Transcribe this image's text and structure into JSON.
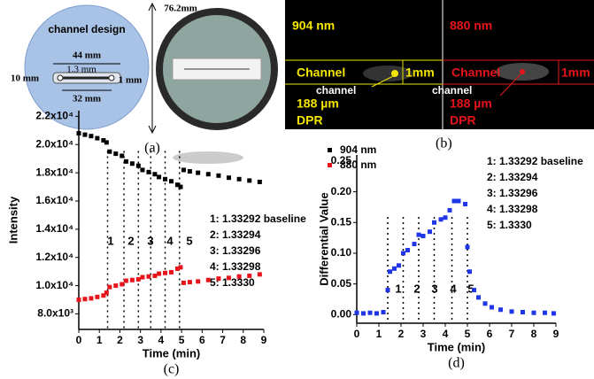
{
  "panel_a": {
    "label": "(a)",
    "dimension": "76.2mm",
    "design_title": "channel design",
    "length_outer": "44 mm",
    "gap": "1.3 mm",
    "height": "10 mm",
    "width": "1 mm",
    "length_inner": "32 mm"
  },
  "panel_b": {
    "label": "(b)",
    "left": {
      "wavelength": "904 nm",
      "channel": "Channel",
      "scale": "1mm",
      "pointer": "channel",
      "size": "188 µm",
      "method": "DPR"
    },
    "right": {
      "wavelength": "880 nm",
      "channel": "Channel",
      "scale": "1mm",
      "pointer": "channel",
      "size": "188 µm",
      "method": "DPR"
    }
  },
  "chart_data": [
    {
      "type": "scatter",
      "panel_label": "(c)",
      "xlabel": "Time (min)",
      "ylabel": "Intensity",
      "xlim": [
        0,
        9
      ],
      "xticks": [
        0,
        1,
        2,
        3,
        4,
        5,
        6,
        7,
        8,
        9
      ],
      "ylim": [
        6900,
        22400
      ],
      "yticks": [
        {
          "value": 8000,
          "label": "8.0x10³"
        },
        {
          "value": 10000,
          "label": "1.0x10⁴"
        },
        {
          "value": 12000,
          "label": "1.2x10⁴"
        },
        {
          "value": 14000,
          "label": "1.4x10⁴"
        },
        {
          "value": 16000,
          "label": "1.6x10⁴"
        },
        {
          "value": 18000,
          "label": "1.8x10⁴"
        },
        {
          "value": 20000,
          "label": "2.0x10⁴"
        },
        {
          "value": 22000,
          "label": "2.2x10⁴"
        }
      ],
      "x": [
        0,
        0.3,
        0.6,
        0.9,
        1.2,
        1.35,
        1.5,
        1.8,
        2.1,
        2.3,
        2.6,
        2.9,
        3.1,
        3.4,
        3.7,
        3.9,
        4.2,
        4.5,
        4.8,
        4.95,
        5.1,
        5.4,
        5.8,
        6.3,
        6.8,
        7.3,
        7.8,
        8.3,
        8.8
      ],
      "series": [
        {
          "name": "904 nm",
          "color": "#000000",
          "values": [
            20800,
            20700,
            20600,
            20450,
            20300,
            20150,
            19500,
            19350,
            19200,
            18800,
            18650,
            18500,
            18200,
            18050,
            17900,
            17700,
            17550,
            17400,
            17150,
            17000,
            18200,
            18100,
            18000,
            17900,
            17800,
            17650,
            17550,
            17450,
            17350
          ]
        },
        {
          "name": "880 nm",
          "color": "#e8141b",
          "values": [
            9000,
            9050,
            9100,
            9200,
            9300,
            9500,
            9900,
            10000,
            10100,
            10350,
            10400,
            10450,
            10600,
            10650,
            10700,
            10850,
            10900,
            10950,
            11200,
            11300,
            10200,
            10250,
            10300,
            10400,
            10500,
            10550,
            10650,
            10700,
            10800
          ]
        }
      ],
      "segment_labels": [
        "1",
        "2",
        "3",
        "4",
        "5"
      ],
      "notes": [
        "1: 1.33292 baseline",
        "2: 1.33294",
        "3: 1.33296",
        "4: 1.33298",
        "5: 1.3330"
      ]
    },
    {
      "type": "scatter",
      "panel_label": "(d)",
      "xlabel": "Time (min)",
      "ylabel": "Differential Value",
      "xlim": [
        0,
        9
      ],
      "xticks": [
        0,
        1,
        2,
        3,
        4,
        5,
        6,
        7,
        8,
        9
      ],
      "ylim": [
        -0.014,
        0.26
      ],
      "yticks": [
        {
          "value": 0,
          "label": "0.00"
        },
        {
          "value": 0.05,
          "label": "0.05"
        },
        {
          "value": 0.1,
          "label": "0.10"
        },
        {
          "value": 0.15,
          "label": "0.15"
        },
        {
          "value": 0.2,
          "label": "0.20"
        },
        {
          "value": 0.25,
          "label": "0.25"
        }
      ],
      "x": [
        0,
        0.3,
        0.6,
        0.9,
        1.2,
        1.4,
        1.5,
        1.7,
        1.9,
        2.1,
        2.3,
        2.6,
        2.8,
        3.0,
        3.3,
        3.5,
        3.8,
        4.0,
        4.2,
        4.4,
        4.6,
        4.9,
        5.0,
        5.1,
        5.3,
        5.5,
        5.8,
        6.1,
        6.5,
        7.0,
        7.5,
        8.0,
        8.5,
        8.9
      ],
      "series": [
        {
          "color": "#1f35e8",
          "values": [
            0.003,
            0.002,
            0.003,
            0.002,
            0.004,
            0.04,
            0.07,
            0.075,
            0.08,
            0.1,
            0.105,
            0.115,
            0.13,
            0.128,
            0.135,
            0.15,
            0.155,
            0.158,
            0.17,
            0.185,
            0.185,
            0.18,
            0.11,
            0.07,
            0.04,
            0.028,
            0.018,
            0.012,
            0.008,
            0.005,
            0.004,
            0.003,
            0.003,
            0.002
          ]
        }
      ],
      "segment_labels": [
        "1",
        "2",
        "3",
        "4",
        "5"
      ],
      "notes": [
        "1: 1.33292 baseline",
        "2: 1.33294",
        "3: 1.33296",
        "4: 1.33298",
        "5: 1.3330"
      ]
    }
  ]
}
